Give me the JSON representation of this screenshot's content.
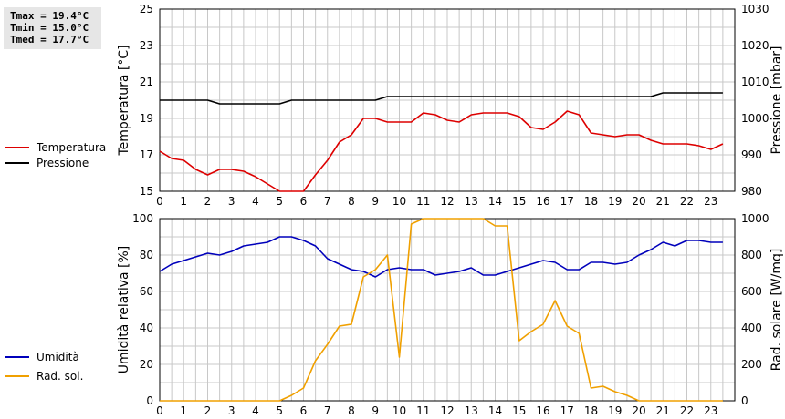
{
  "stats": {
    "tmax": "Tmax = 19.4°C",
    "tmin": "Tmin = 15.0°C",
    "tmed": "Tmed = 17.7°C"
  },
  "colors": {
    "temperature": "#dd0000",
    "pressure": "#000000",
    "humidity": "#0000bb",
    "radiation": "#f0a000",
    "grid": "#c8c8c8"
  },
  "chart_data": [
    {
      "type": "line",
      "xlabel": "",
      "ylabel": "Temperatura [°C]",
      "y2label": "Pressione [mbar]",
      "xlim": [
        0,
        24
      ],
      "ylim": [
        15,
        25
      ],
      "y2lim": [
        980,
        1030
      ],
      "xticks": [
        0,
        1,
        2,
        3,
        4,
        5,
        6,
        7,
        8,
        9,
        10,
        11,
        12,
        13,
        14,
        15,
        16,
        17,
        18,
        19,
        20,
        21,
        22,
        23
      ],
      "yticks": [
        15,
        17,
        19,
        21,
        23,
        25
      ],
      "y2ticks": [
        980,
        990,
        1000,
        1010,
        1020,
        1030
      ],
      "grid": true,
      "series": [
        {
          "name": "Temperatura",
          "axis": "left",
          "x": [
            0,
            0.5,
            1,
            1.5,
            2,
            2.5,
            3,
            3.5,
            4,
            4.5,
            5,
            5.5,
            6,
            6.5,
            7,
            7.5,
            8,
            8.5,
            9,
            9.5,
            10,
            10.5,
            11,
            11.5,
            12,
            12.5,
            13,
            13.5,
            14,
            14.5,
            15,
            15.5,
            16,
            16.5,
            17,
            17.5,
            18,
            18.5,
            19,
            19.5,
            20,
            20.5,
            21,
            21.5,
            22,
            22.5,
            23,
            23.5
          ],
          "y": [
            17.2,
            16.8,
            16.7,
            16.2,
            15.9,
            16.2,
            16.2,
            16.1,
            15.8,
            15.4,
            15.0,
            15.0,
            15.0,
            15.9,
            16.7,
            17.7,
            18.1,
            19.0,
            19.0,
            18.8,
            18.8,
            18.8,
            19.3,
            19.2,
            18.9,
            18.8,
            19.2,
            19.3,
            19.3,
            19.3,
            19.1,
            18.5,
            18.4,
            18.8,
            19.4,
            19.2,
            18.2,
            18.1,
            18.0,
            18.1,
            18.1,
            17.8,
            17.6,
            17.6,
            17.6,
            17.5,
            17.3,
            17.6
          ]
        },
        {
          "name": "Pressione",
          "axis": "right",
          "x": [
            0,
            2,
            2.5,
            5,
            5.5,
            9,
            9.5,
            20.5,
            21,
            23.5
          ],
          "y": [
            1005,
            1005,
            1004,
            1004,
            1005,
            1005,
            1006,
            1006,
            1007,
            1007
          ]
        }
      ]
    },
    {
      "type": "line",
      "xlabel": "",
      "ylabel": "Umidità relativa [%]",
      "y2label": "Rad. solare [W/mq]",
      "xlim": [
        0,
        24
      ],
      "ylim": [
        0,
        100
      ],
      "y2lim": [
        0,
        1000
      ],
      "xticks": [
        0,
        1,
        2,
        3,
        4,
        5,
        6,
        7,
        8,
        9,
        10,
        11,
        12,
        13,
        14,
        15,
        16,
        17,
        18,
        19,
        20,
        21,
        22,
        23
      ],
      "yticks": [
        0,
        20,
        40,
        60,
        80,
        100
      ],
      "y2ticks": [
        0,
        200,
        400,
        600,
        800,
        1000
      ],
      "grid": true,
      "series": [
        {
          "name": "Umidità",
          "axis": "left",
          "x": [
            0,
            0.5,
            1,
            1.5,
            2,
            2.5,
            3,
            3.5,
            4,
            4.5,
            5,
            5.5,
            6,
            6.5,
            7,
            7.5,
            8,
            8.5,
            9,
            9.5,
            10,
            10.5,
            11,
            11.5,
            12,
            12.5,
            13,
            13.5,
            14,
            14.5,
            15,
            15.5,
            16,
            16.5,
            17,
            17.5,
            18,
            18.5,
            19,
            19.5,
            20,
            20.5,
            21,
            21.5,
            22,
            22.5,
            23,
            23.5
          ],
          "y": [
            71,
            75,
            77,
            79,
            81,
            80,
            82,
            85,
            86,
            87,
            90,
            90,
            88,
            85,
            78,
            75,
            72,
            71,
            68,
            72,
            73,
            72,
            72,
            69,
            70,
            71,
            73,
            69,
            69,
            71,
            73,
            75,
            77,
            76,
            72,
            72,
            76,
            76,
            75,
            76,
            80,
            83,
            87,
            85,
            88,
            88,
            87,
            87
          ]
        },
        {
          "name": "Rad. sol.",
          "axis": "right",
          "x": [
            0,
            0.5,
            1,
            1.5,
            2,
            2.5,
            3,
            3.5,
            4,
            4.5,
            5,
            5.5,
            6,
            6.5,
            7,
            7.5,
            8,
            8.5,
            9,
            9.5,
            10,
            10.5,
            11,
            11.5,
            12,
            12.5,
            13,
            13.5,
            14,
            14.5,
            15,
            15.5,
            16,
            16.5,
            17,
            17.5,
            18,
            18.5,
            19,
            19.5,
            20,
            20.5,
            21,
            21.5,
            22,
            22.5,
            23,
            23.5
          ],
          "y": [
            0,
            0,
            0,
            0,
            0,
            0,
            0,
            0,
            0,
            0,
            0,
            30,
            70,
            220,
            310,
            410,
            420,
            680,
            720,
            800,
            240,
            970,
            1000,
            1000,
            1000,
            1000,
            1000,
            1000,
            960,
            960,
            330,
            380,
            420,
            550,
            410,
            370,
            70,
            80,
            50,
            30,
            0,
            0,
            0,
            0,
            0,
            0,
            0,
            0
          ]
        }
      ]
    }
  ]
}
